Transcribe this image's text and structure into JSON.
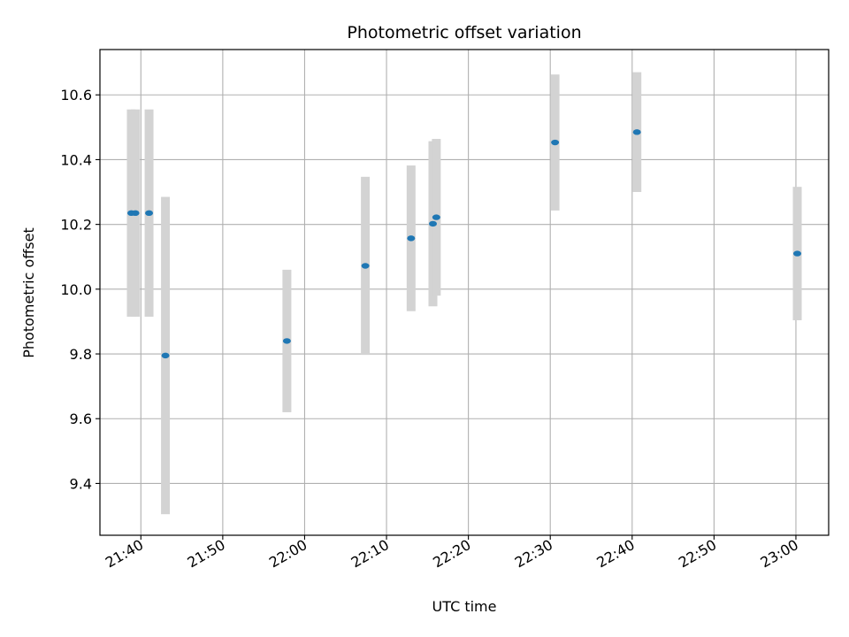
{
  "chart_data": {
    "type": "scatter",
    "title": "Photometric offset variation",
    "xlabel": "UTC time",
    "ylabel": "Photometric offset",
    "x_axis": {
      "kind": "time",
      "range": [
        "21:35",
        "23:04"
      ],
      "ticks": [
        "21:40",
        "21:50",
        "22:00",
        "22:10",
        "22:20",
        "22:30",
        "22:40",
        "22:50",
        "23:00"
      ]
    },
    "y_axis": {
      "range": [
        9.24,
        10.74
      ],
      "ticks": [
        9.4,
        9.6,
        9.8,
        10.0,
        10.2,
        10.4,
        10.6
      ],
      "tick_labels": [
        "9.4",
        "9.6",
        "9.8",
        "10.0",
        "10.2",
        "10.4",
        "10.6"
      ]
    },
    "grid": true,
    "colors": {
      "points": "#1f77b4",
      "error_bars": "#d3d3d3",
      "grid": "#b0b0b0"
    },
    "points": [
      {
        "t": "21:38:50",
        "y": 10.235,
        "err": 0.32
      },
      {
        "t": "21:39:20",
        "y": 10.235,
        "err": 0.32
      },
      {
        "t": "21:41:00",
        "y": 10.235,
        "err": 0.32
      },
      {
        "t": "21:43:00",
        "y": 9.795,
        "err": 0.49
      },
      {
        "t": "21:57:50",
        "y": 9.84,
        "err": 0.22
      },
      {
        "t": "22:07:25",
        "y": 10.072,
        "err": 0.275
      },
      {
        "t": "22:13:00",
        "y": 10.157,
        "err": 0.225
      },
      {
        "t": "22:15:40",
        "y": 10.202,
        "err": 0.255
      },
      {
        "t": "22:16:05",
        "y": 10.222,
        "err": 0.242
      },
      {
        "t": "22:30:35",
        "y": 10.453,
        "err": 0.21
      },
      {
        "t": "22:40:35",
        "y": 10.485,
        "err": 0.185
      },
      {
        "t": "23:00:10",
        "y": 10.11,
        "err": 0.206
      }
    ]
  }
}
